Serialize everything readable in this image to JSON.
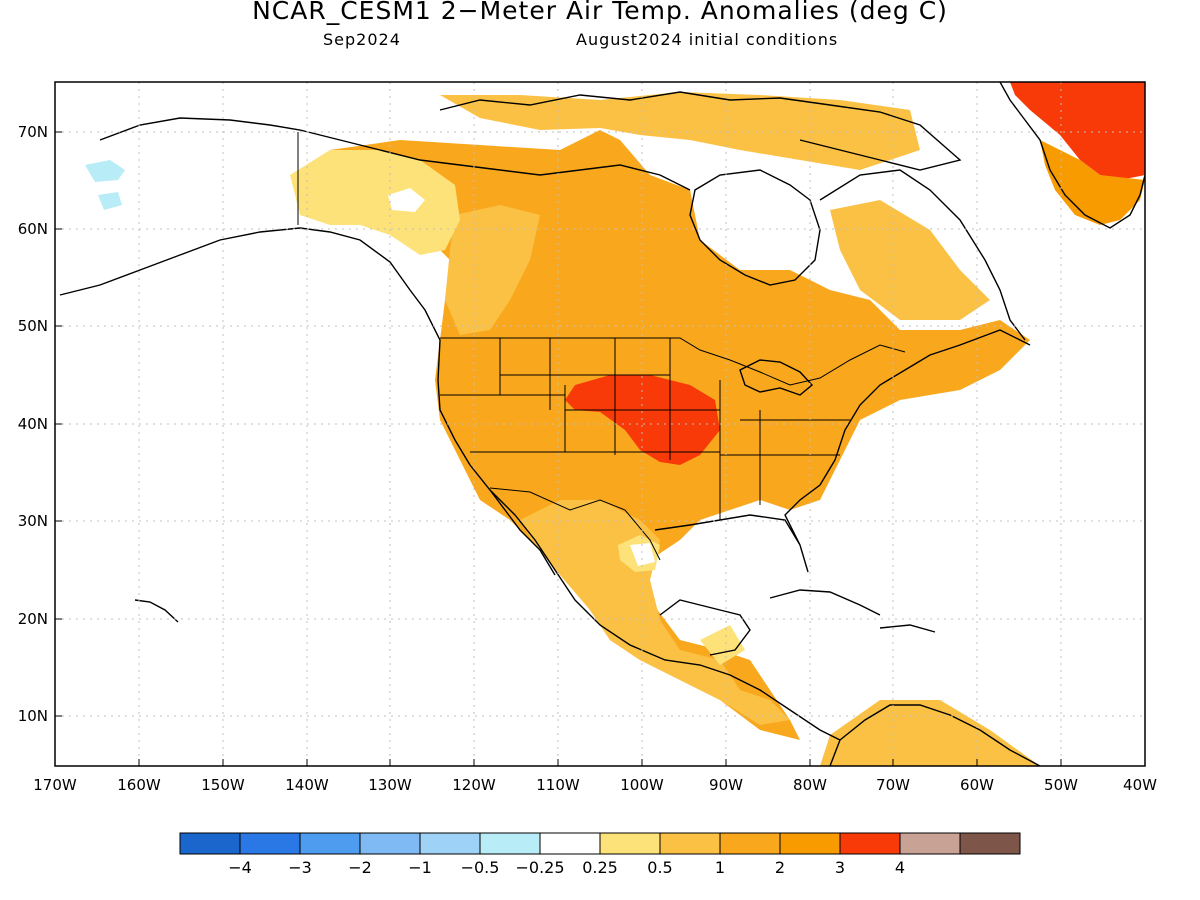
{
  "title": "NCAR_CESM1 2−Meter Air Temp. Anomalies (deg C)",
  "subtitle_left": "Sep2024",
  "subtitle_right": "August2024 initial conditions",
  "colors": {
    "land_outline": "#000000",
    "grid": "#c8c8c8",
    "bin_m4": "#1a66cc",
    "bin_m3": "#2a78e6",
    "bin_m2": "#4d9cf0",
    "bin_m1": "#7fbaf5",
    "bin_m05": "#9fd2f7",
    "bin_m025": "#b8ecf7",
    "bin_0": "#ffffff",
    "bin_025": "#fde27a",
    "bin_05": "#fbc144",
    "bin_1": "#f9a81e",
    "bin_2": "#f79b00",
    "bin_3": "#f73a07",
    "bin_4": "#c9a296",
    "bin_5": "#7e5549"
  },
  "lat_labels": [
    "70N",
    "60N",
    "50N",
    "40N",
    "30N",
    "20N",
    "10N"
  ],
  "lon_labels": [
    "170W",
    "160W",
    "150W",
    "140W",
    "130W",
    "120W",
    "110W",
    "100W",
    "90W",
    "80W",
    "70W",
    "60W",
    "50W",
    "40W"
  ],
  "colorbar": {
    "colors": [
      "#1a66cc",
      "#2a78e6",
      "#4d9cf0",
      "#7fbaf5",
      "#9fd2f7",
      "#b8ecf7",
      "#ffffff",
      "#fde27a",
      "#fbc144",
      "#f9a81e",
      "#f79b00",
      "#f73a07",
      "#c9a296",
      "#7e5549"
    ],
    "labels": [
      "−4",
      "−3",
      "−2",
      "−1",
      "−0.5",
      "−0.25",
      "0.25",
      "0.5",
      "1",
      "2",
      "3",
      "4"
    ]
  }
}
